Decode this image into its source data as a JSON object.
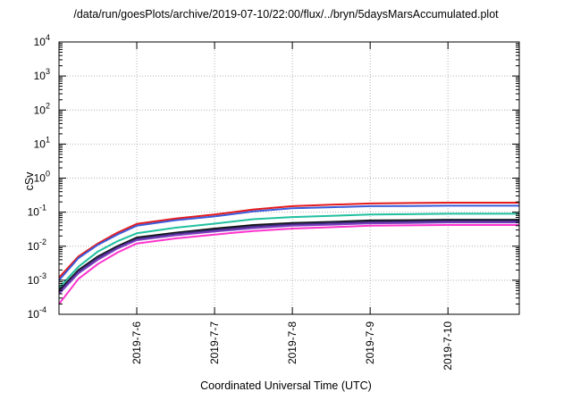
{
  "chart_data": {
    "type": "line",
    "title": "/data/run/goesPlots/archive/2019-07-10/22:00/flux/../bryn/5daysMarsAccumulated.plot",
    "xlabel": "Coordinated Universal Time (UTC)",
    "ylabel": "cSv",
    "yscale": "log",
    "ylim": [
      0.0001,
      10000
    ],
    "xlim": [
      "2019-07-05T00:00",
      "2019-07-10T22:00"
    ],
    "x_tick_labels": [
      "2019-7-6",
      "2019-7-7",
      "2019-7-8",
      "2019-7-9",
      "2019-7-10"
    ],
    "y_tick_labels": [
      {
        "base": "10",
        "exp": "-4"
      },
      {
        "base": "10",
        "exp": "-3"
      },
      {
        "base": "10",
        "exp": "-2"
      },
      {
        "base": "10",
        "exp": "-1"
      },
      {
        "base": "10",
        "exp": "0"
      },
      {
        "base": "10",
        "exp": "1"
      },
      {
        "base": "10",
        "exp": "2"
      },
      {
        "base": "10",
        "exp": "3"
      },
      {
        "base": "10",
        "exp": "4"
      }
    ],
    "grid": true,
    "x": [
      "2019-07-05T00:00",
      "2019-07-05T06:00",
      "2019-07-05T12:00",
      "2019-07-05T18:00",
      "2019-07-06T00:00",
      "2019-07-06T12:00",
      "2019-07-07T00:00",
      "2019-07-07T12:00",
      "2019-07-08T00:00",
      "2019-07-08T12:00",
      "2019-07-09T00:00",
      "2019-07-09T12:00",
      "2019-07-10T00:00",
      "2019-07-10T12:00",
      "2019-07-10T22:00"
    ],
    "series": [
      {
        "color": "#e41a1c",
        "values": [
          0.0012,
          0.005,
          0.012,
          0.025,
          0.045,
          0.065,
          0.085,
          0.12,
          0.15,
          0.165,
          0.18,
          0.185,
          0.19,
          0.19,
          0.19
        ]
      },
      {
        "color": "#3b5bdb",
        "values": [
          0.001,
          0.0045,
          0.011,
          0.022,
          0.04,
          0.058,
          0.075,
          0.105,
          0.13,
          0.14,
          0.15,
          0.152,
          0.155,
          0.155,
          0.155
        ]
      },
      {
        "color": "#20c0a0",
        "values": [
          0.0006,
          0.0025,
          0.007,
          0.014,
          0.024,
          0.035,
          0.046,
          0.062,
          0.072,
          0.078,
          0.085,
          0.087,
          0.09,
          0.09,
          0.09
        ]
      },
      {
        "color": "#111111",
        "values": [
          0.0005,
          0.002,
          0.005,
          0.01,
          0.018,
          0.025,
          0.033,
          0.042,
          0.048,
          0.052,
          0.057,
          0.058,
          0.06,
          0.06,
          0.06
        ]
      },
      {
        "color": "#3c2a78",
        "values": [
          0.00045,
          0.0018,
          0.0046,
          0.0092,
          0.0165,
          0.023,
          0.03,
          0.038,
          0.044,
          0.048,
          0.052,
          0.053,
          0.055,
          0.055,
          0.055
        ]
      },
      {
        "color": "#7a3fbf",
        "values": [
          0.0004,
          0.0016,
          0.004,
          0.0085,
          0.015,
          0.021,
          0.027,
          0.034,
          0.04,
          0.043,
          0.047,
          0.048,
          0.05,
          0.05,
          0.05
        ]
      },
      {
        "color": "#ff33cc",
        "values": [
          0.0002,
          0.0011,
          0.003,
          0.0065,
          0.012,
          0.017,
          0.022,
          0.028,
          0.033,
          0.036,
          0.04,
          0.041,
          0.042,
          0.042,
          0.042
        ]
      }
    ]
  }
}
